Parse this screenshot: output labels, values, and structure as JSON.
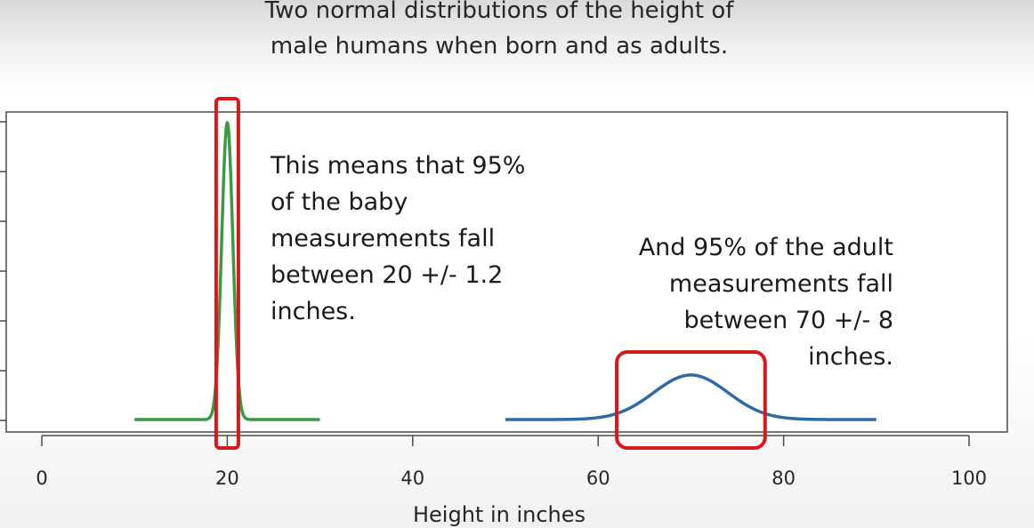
{
  "chart_data": {
    "type": "line",
    "title_lines": [
      "Two normal distributions of the height of",
      "male humans when born and as adults."
    ],
    "xlabel": "Height in inches",
    "xlim": [
      0,
      100
    ],
    "xticks": [
      0,
      20,
      40,
      60,
      80,
      100
    ],
    "series": [
      {
        "mean": 20,
        "sd": 0.6,
        "x_range": [
          10,
          30
        ],
        "color": "#3c9a45"
      },
      {
        "mean": 70,
        "sd": 4,
        "x_range": [
          50,
          90
        ],
        "color": "#2f6aa5"
      }
    ],
    "highlights": [
      {
        "x_range": [
          18.8,
          21.2
        ],
        "color": "#d7191c"
      },
      {
        "x_range": [
          62,
          78
        ],
        "color": "#d7191c"
      }
    ],
    "annotations": {
      "baby": [
        "This means that 95%",
        "of the baby",
        "measurements fall",
        "between 20 +/- 1.2",
        "inches."
      ],
      "adult": [
        "And 95% of the adult",
        "measurements fall",
        "between 70 +/- 8",
        "inches."
      ]
    }
  }
}
